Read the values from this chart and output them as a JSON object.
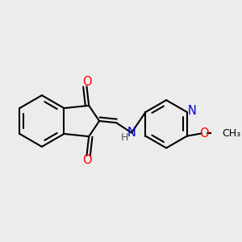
{
  "background_color": "#ececec",
  "bond_color": "#000000",
  "bond_width": 1.5,
  "atom_colors": {
    "O": "#ff0000",
    "N": "#0000cc",
    "H": "#555555"
  },
  "figsize": [
    3.0,
    3.0
  ],
  "dpi": 100
}
